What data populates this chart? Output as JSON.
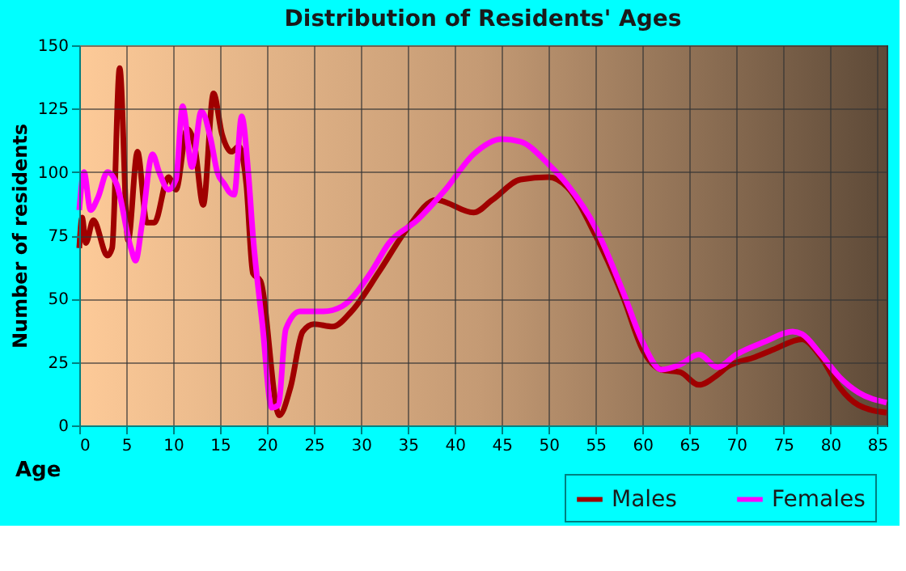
{
  "chart_data": {
    "type": "line",
    "title": "Distribution of Residents' Ages",
    "xlabel": "Age",
    "ylabel": "Number of residents",
    "xlim": [
      0,
      86
    ],
    "ylim": [
      0,
      150
    ],
    "xticks": [
      0,
      5,
      10,
      15,
      20,
      25,
      30,
      35,
      40,
      45,
      50,
      55,
      60,
      65,
      70,
      75,
      80,
      85
    ],
    "yticks": [
      0,
      25,
      50,
      75,
      100,
      125,
      150
    ],
    "grid": true,
    "legend": "bottom",
    "line_style": "solid",
    "marker": "none",
    "series": [
      {
        "name": "Males",
        "color": "#a00000",
        "x": [
          0,
          0.3,
          0.7,
          1.5,
          3,
          3.5,
          4.3,
          5.2,
          6.2,
          7.2,
          8,
          9.5,
          10.3,
          11.5,
          12.3,
          13.2,
          14.3,
          15.2,
          16.2,
          17,
          17.8,
          18.5,
          19.3,
          21.3,
          22.5,
          23.8,
          25,
          27,
          29,
          32,
          35,
          38,
          42,
          44,
          47,
          50,
          52,
          55,
          58,
          60,
          62,
          64,
          66,
          68,
          69,
          72,
          74,
          77,
          79,
          81,
          83,
          86
        ],
        "values": [
          70,
          82,
          72,
          81,
          67,
          70,
          141,
          73,
          108,
          80,
          80,
          98,
          93,
          117,
          110,
          87,
          131,
          115,
          108,
          110,
          95,
          60,
          57,
          4,
          15,
          37,
          40,
          39,
          45,
          61,
          78,
          89,
          84,
          89,
          97,
          98,
          94,
          75,
          50,
          30,
          22,
          21,
          16,
          20,
          23,
          27,
          30,
          34,
          27,
          15,
          8,
          5
        ]
      },
      {
        "name": "Females",
        "color": "#ff00ff",
        "x": [
          0,
          0.5,
          1.2,
          2,
          3,
          4,
          5.5,
          6,
          6.7,
          7.8,
          8.5,
          9.5,
          10.3,
          11,
          12,
          13,
          14,
          14.7,
          15.5,
          16,
          16.5,
          17.3,
          18,
          18.5,
          19.5,
          20.5,
          21.2,
          22,
          23.5,
          26,
          28,
          31,
          33,
          36,
          39,
          42,
          45,
          47,
          50,
          52,
          55,
          58,
          60,
          62,
          64,
          66,
          68,
          70,
          73,
          76,
          77,
          79,
          81,
          83,
          86
        ],
        "values": [
          85,
          100,
          85,
          90,
          100,
          95,
          70,
          65,
          80,
          107,
          100,
          93,
          97,
          126,
          102,
          124,
          113,
          100,
          95,
          92,
          91,
          122,
          100,
          75,
          40,
          7,
          8,
          38,
          45,
          45,
          47,
          60,
          72,
          81,
          93,
          107,
          113,
          112,
          103,
          95,
          78,
          52,
          33,
          22,
          24,
          28,
          23,
          28,
          33,
          37,
          36,
          28,
          19,
          13,
          9
        ]
      }
    ]
  }
}
